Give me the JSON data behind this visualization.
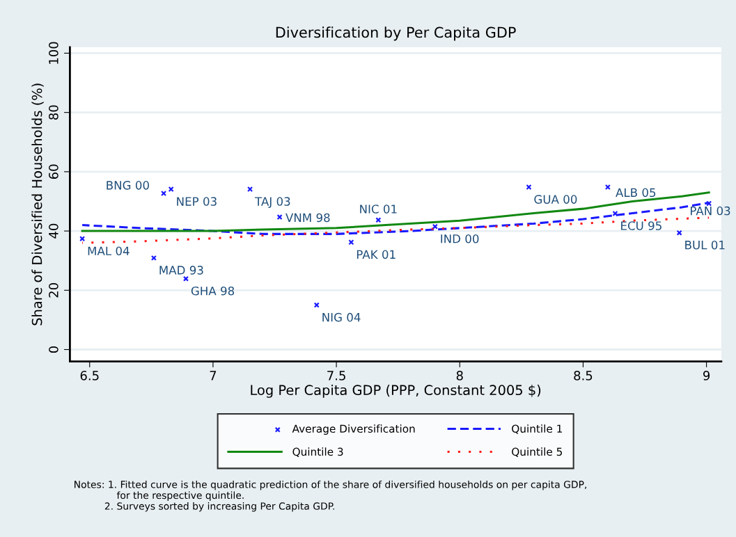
{
  "chart_data": {
    "type": "line",
    "title": "Diversification by Per Capita GDP",
    "xlabel": "Log Per Capita GDP (PPP, Constant 2005 $)",
    "ylabel": "Share of Diversified Households (%)",
    "xlim": [
      6.42,
      9.06
    ],
    "ylim": [
      -4,
      102
    ],
    "xticks": [
      6.5,
      7,
      7.5,
      8,
      8.5,
      9
    ],
    "yticks": [
      0,
      20,
      40,
      60,
      80,
      100
    ],
    "grid": "y",
    "legend": "bottom",
    "series": [
      {
        "name": "Average Diversification",
        "type": "scatter",
        "marker": "cross",
        "color": "#1a1aff",
        "x": [
          6.47,
          6.8,
          6.83,
          6.76,
          6.89,
          7.15,
          7.27,
          7.42,
          7.56,
          7.67,
          7.9,
          8.28,
          8.6,
          8.63,
          8.89,
          9.01
        ],
        "values": [
          37.4,
          52.7,
          54.1,
          30.9,
          23.9,
          54.1,
          44.7,
          15.0,
          36.2,
          43.7,
          41.5,
          54.8,
          54.8,
          45.9,
          39.4,
          49.3
        ]
      },
      {
        "name": "Quintile 1",
        "line_style": "dashed",
        "color": "#1a1aff",
        "x": [
          6.47,
          6.7,
          7.0,
          7.2,
          7.5,
          7.8,
          8.0,
          8.3,
          8.5,
          8.7,
          8.9,
          9.01
        ],
        "values": [
          42,
          41,
          40,
          39,
          39,
          40,
          41,
          42.5,
          44,
          46,
          48,
          49.5
        ]
      },
      {
        "name": "Quintile 3",
        "line_style": "solid",
        "color": "#118811",
        "x": [
          6.47,
          7.0,
          7.2,
          7.5,
          7.7,
          8.0,
          8.3,
          8.5,
          8.7,
          8.9,
          9.01
        ],
        "values": [
          40,
          40,
          40.5,
          41,
          42,
          43.5,
          46,
          47.5,
          50,
          51.7,
          53
        ]
      },
      {
        "name": "Quintile 5",
        "line_style": "dotted",
        "color": "#ff1a1a",
        "x": [
          6.47,
          6.7,
          7.0,
          7.2,
          7.5,
          7.8,
          8.0,
          8.3,
          8.5,
          8.7,
          9.01
        ],
        "values": [
          36,
          36.5,
          37.5,
          38.5,
          39.5,
          40.5,
          41,
          42,
          42.5,
          43.5,
          44.5
        ]
      }
    ],
    "annotations": [
      {
        "text": "MAL 04",
        "x": 6.47,
        "y": 37.4
      },
      {
        "text": "BNG 00",
        "x": 6.8,
        "y": 52.7
      },
      {
        "text": "NEP 03",
        "x": 6.83,
        "y": 54.1
      },
      {
        "text": "MAD 93",
        "x": 6.76,
        "y": 30.9
      },
      {
        "text": "GHA 98",
        "x": 6.89,
        "y": 23.9
      },
      {
        "text": "TAJ 03",
        "x": 7.15,
        "y": 54.1
      },
      {
        "text": "VNM 98",
        "x": 7.27,
        "y": 44.7
      },
      {
        "text": "NIG 04",
        "x": 7.42,
        "y": 15.0
      },
      {
        "text": "PAK 01",
        "x": 7.56,
        "y": 36.2
      },
      {
        "text": "NIC 01",
        "x": 7.67,
        "y": 43.7
      },
      {
        "text": "IND 00",
        "x": 7.9,
        "y": 41.5
      },
      {
        "text": "GUA 00",
        "x": 8.28,
        "y": 54.8
      },
      {
        "text": "ALB 05",
        "x": 8.6,
        "y": 54.8
      },
      {
        "text": "ECU 95",
        "x": 8.63,
        "y": 45.9
      },
      {
        "text": "BUL 01",
        "x": 8.89,
        "y": 39.4
      },
      {
        "text": "PAN 03",
        "x": 9.01,
        "y": 49.3
      },
      "Notes: 1. Fitted curve is the quadratic prediction of the share of diversified households on per capita GDP,\n              for the respective quintile.\n          2. Surveys sorted by increasing Per Capita GDP."
    ]
  }
}
